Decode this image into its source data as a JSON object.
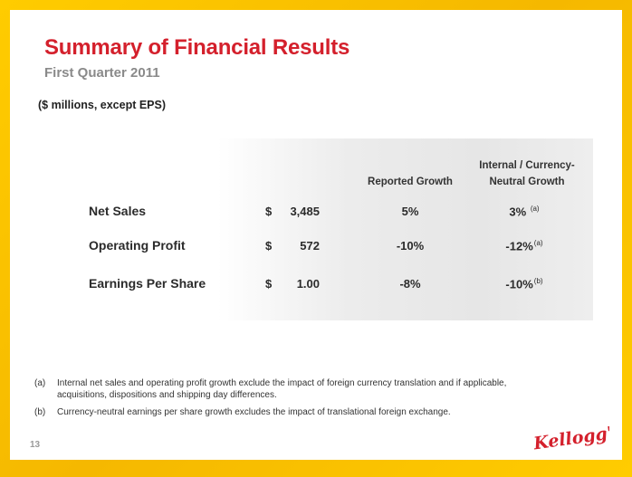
{
  "slide": {
    "title": "Summary of Financial Results",
    "subtitle": "First Quarter 2011",
    "units_note": "($ millions, except EPS)",
    "page_number": "13",
    "brand": "Kellogg's"
  },
  "table": {
    "headers": {
      "reported_growth": "Reported Growth",
      "internal_line1": "Internal / Currency-",
      "internal_line2": "Neutral Growth"
    },
    "rows": [
      {
        "label": "Net Sales",
        "currency": "$",
        "amount": "3,485",
        "reported": "5%",
        "internal": "3%",
        "footnote": "(a)"
      },
      {
        "label": "Operating Profit",
        "currency": "$",
        "amount": "572",
        "reported": "-10%",
        "internal": "-12%",
        "footnote": "(a)"
      },
      {
        "label": "Earnings Per Share",
        "currency": "$",
        "amount": "1.00",
        "reported": "-8%",
        "internal": "-10%",
        "footnote": "(b)"
      }
    ]
  },
  "footnotes": [
    {
      "mark": "(a)",
      "text": "Internal net sales and operating profit growth exclude the impact of foreign currency translation and if applicable, acquisitions, dispositions and shipping day differences."
    },
    {
      "mark": "(b)",
      "text": "Currency-neutral earnings per share growth excludes the impact of translational foreign exchange."
    }
  ],
  "colors": {
    "title_red": "#d4202c",
    "frame_yellow": "#ffcc00",
    "subtitle_gray": "#8a8a8a"
  }
}
